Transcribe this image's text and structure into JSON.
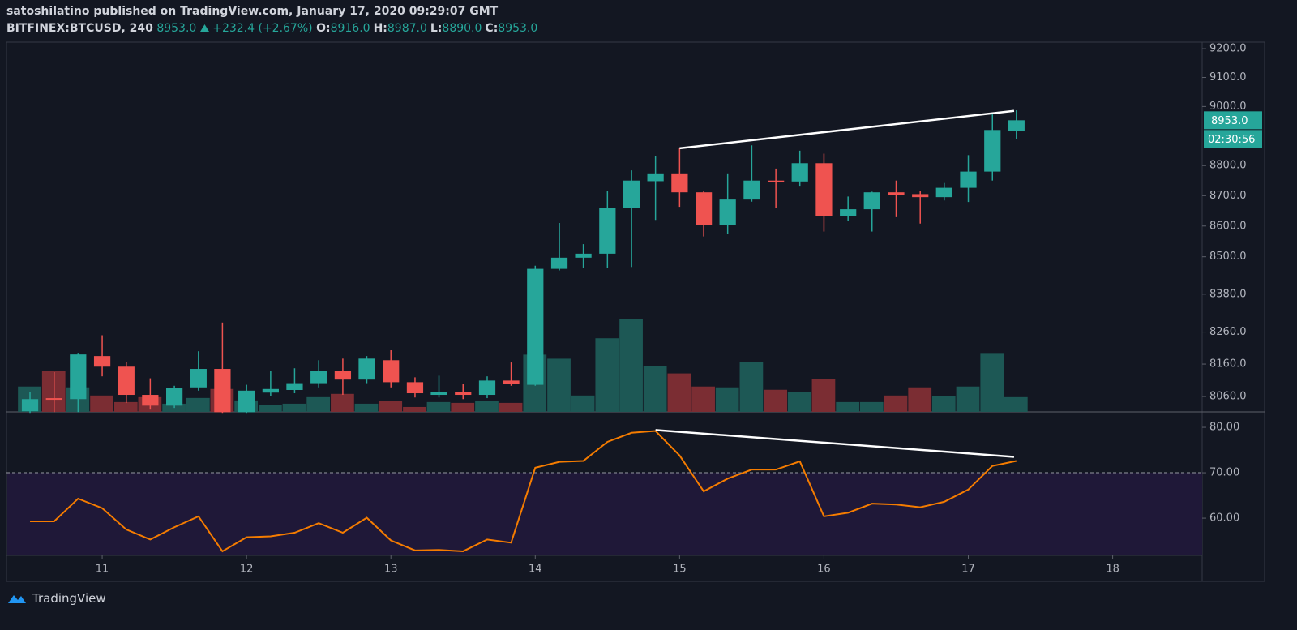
{
  "header": {
    "author_line": "satoshilatino published on TradingView.com, January 17, 2020 09:29:07 GMT",
    "symbol": "BITFINEX:BTCUSD, 240",
    "last": "8953.0",
    "change": "+232.4 (+2.67%)",
    "ohlc": [
      {
        "key": "O:",
        "value": "8916.0"
      },
      {
        "key": "H:",
        "value": "8987.0"
      },
      {
        "key": "L:",
        "value": "8890.0"
      },
      {
        "key": "C:",
        "value": "8953.0"
      }
    ]
  },
  "footer": {
    "brand": "TradingView"
  },
  "chart_data": [
    {
      "type": "candlestick",
      "x": [
        10.5,
        10.667,
        10.833,
        11,
        11.167,
        11.333,
        11.5,
        11.667,
        11.833,
        12,
        12.167,
        12.333,
        12.5,
        12.667,
        12.833,
        13,
        13.167,
        13.333,
        13.5,
        13.667,
        13.833,
        14,
        14.167,
        14.333,
        14.5,
        14.667,
        14.833,
        15,
        15.167,
        15.333,
        15.5,
        15.667,
        15.833,
        16,
        16.167,
        16.333,
        16.5,
        16.667,
        16.833,
        17,
        17.167,
        17.333
      ],
      "open": [
        8015,
        8055,
        8052,
        8185,
        8152,
        8065,
        8032,
        8088,
        8145,
        8012,
        8072,
        8080,
        8101,
        8140,
        8112,
        8172,
        8104,
        8065,
        8073,
        8065,
        8109,
        8096,
        8461,
        8497,
        8510,
        8660,
        8748,
        8774,
        8711,
        8603,
        8687,
        8750,
        8747,
        8808,
        8632,
        8655,
        8711,
        8705,
        8695,
        8726,
        8780,
        8916
      ],
      "high": [
        8073,
        8135,
        8195,
        8250,
        8167,
        8116,
        8093,
        8200,
        8290,
        8096,
        8140,
        8147,
        8172,
        8177,
        8185,
        8203,
        8119,
        8124,
        8099,
        8122,
        8165,
        8471,
        8610,
        8541,
        8716,
        8784,
        8833,
        8858,
        8716,
        8774,
        8868,
        8790,
        8850,
        8840,
        8697,
        8713,
        8750,
        8716,
        8742,
        8835,
        8978,
        8987
      ],
      "low": [
        8010,
        8012,
        8012,
        8122,
        8040,
        8020,
        8025,
        8078,
        8010,
        8010,
        8062,
        8070,
        8088,
        8065,
        8101,
        8088,
        8057,
        8057,
        8052,
        8055,
        8093,
        8093,
        8456,
        8464,
        8464,
        8467,
        8620,
        8663,
        8566,
        8574,
        8680,
        8660,
        8730,
        8582,
        8616,
        8582,
        8629,
        8608,
        8684,
        8679,
        8750,
        8890
      ],
      "close": [
        8052,
        8050,
        8190,
        8152,
        8065,
        8032,
        8085,
        8145,
        8012,
        8078,
        8083,
        8101,
        8140,
        8112,
        8177,
        8104,
        8070,
        8073,
        8065,
        8109,
        8099,
        8461,
        8497,
        8510,
        8660,
        8750,
        8774,
        8711,
        8603,
        8687,
        8750,
        8747,
        8808,
        8632,
        8655,
        8711,
        8703,
        8695,
        8726,
        8780,
        8920,
        8953
      ],
      "volume": [
        31,
        50,
        30,
        20,
        12,
        18,
        10,
        17,
        28,
        14,
        8,
        10,
        18,
        22,
        10,
        13,
        6,
        12,
        11,
        13,
        11,
        70,
        65,
        20,
        90,
        113,
        56,
        47,
        31,
        30,
        61,
        27,
        24,
        40,
        12,
        12,
        20,
        30,
        19,
        31,
        72,
        18
      ],
      "up_color": "#26a69a",
      "down_color": "#ef5350",
      "volume_up_color": "#1d5855",
      "volume_down_color": "#7b2d33",
      "log_scale": true,
      "grid": false,
      "xlim": [
        10.337,
        18.62
      ],
      "ylim": [
        8013,
        9223
      ],
      "yticks": [
        {
          "value": 9200,
          "label": "9200.0"
        },
        {
          "value": 9100,
          "label": "9100.0"
        },
        {
          "value": 9000,
          "label": "9000.0"
        },
        {
          "value": 8800,
          "label": "8800.0"
        },
        {
          "value": 8700,
          "label": "8700.0"
        },
        {
          "value": 8600,
          "label": "8600.0"
        },
        {
          "value": 8500,
          "label": "8500.0"
        },
        {
          "value": 8380,
          "label": "8380.0"
        },
        {
          "value": 8260,
          "label": "8260.0"
        },
        {
          "value": 8160,
          "label": "8160.0"
        },
        {
          "value": 8060,
          "label": "8060.0"
        }
      ],
      "last_price": {
        "value": 8953,
        "label": "8953.0"
      },
      "countdown": "02:30:56",
      "trendline": {
        "x": [
          15,
          17.317
        ],
        "y": [
          8858,
          8985
        ],
        "color": "#ffffff"
      }
    },
    {
      "type": "line",
      "x": [
        10.5,
        10.667,
        10.833,
        11,
        11.167,
        11.333,
        11.5,
        11.667,
        11.833,
        12,
        12.167,
        12.333,
        12.5,
        12.667,
        12.833,
        13,
        13.167,
        13.333,
        13.5,
        13.667,
        13.833,
        14,
        14.167,
        14.333,
        14.5,
        14.667,
        14.833,
        15,
        15.167,
        15.333,
        15.5,
        15.667,
        15.833,
        16,
        16.167,
        16.333,
        16.5,
        16.667,
        16.833,
        17,
        17.167,
        17.333
      ],
      "values": [
        59.3,
        59.3,
        64.3,
        62.2,
        57.5,
        55.3,
        58.0,
        60.4,
        52.7,
        55.8,
        56.0,
        56.8,
        58.9,
        56.8,
        60.1,
        55.1,
        52.9,
        53.0,
        52.7,
        55.3,
        54.6,
        71.1,
        72.4,
        72.6,
        76.8,
        78.8,
        79.2,
        73.8,
        65.9,
        68.7,
        70.7,
        70.7,
        72.5,
        60.4,
        61.2,
        63.2,
        63.0,
        62.4,
        63.6,
        66.3,
        71.5,
        72.6
      ],
      "color": "#f57c00",
      "band_color": "#1f1838",
      "threshold": 70,
      "xlim": [
        10.337,
        18.62
      ],
      "xticks": [
        11,
        12,
        13,
        14,
        15,
        16,
        17,
        18
      ],
      "ylim": [
        51.8,
        83.4
      ],
      "yticks": [
        {
          "value": 80,
          "label": "80.00"
        },
        {
          "value": 70,
          "label": "70.00"
        },
        {
          "value": 60,
          "label": "60.00"
        }
      ],
      "trendline": {
        "x": [
          14.833,
          17.317
        ],
        "y": [
          79.4,
          73.5
        ],
        "color": "#ffffff"
      }
    }
  ]
}
